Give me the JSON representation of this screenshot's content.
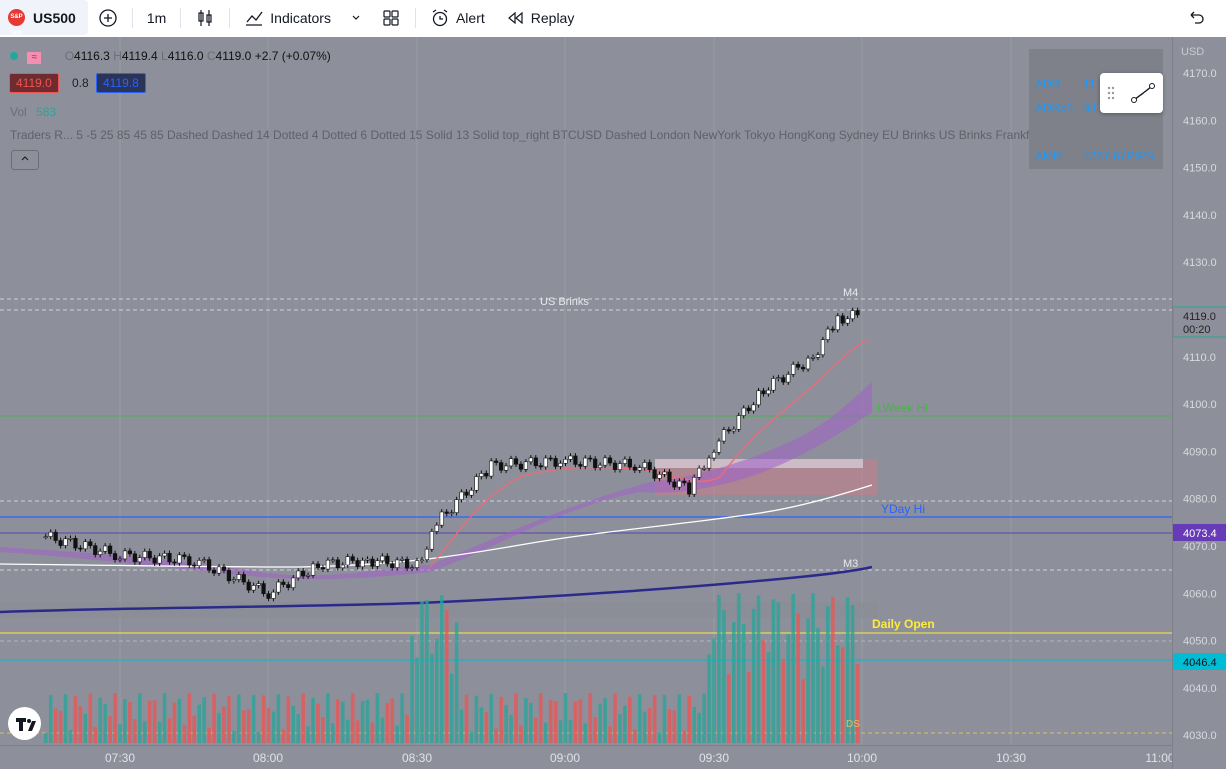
{
  "toolbar": {
    "symbol": "US500",
    "symbol_logo": "S&P 500",
    "add_symbol_icon": "plus-circle-icon",
    "interval": "1m",
    "chart_type_icon": "candles-icon",
    "indicators_label": "Indicators",
    "layouts_icon": "grid-icon",
    "alert_label": "Alert",
    "replay_label": "Replay",
    "undo_icon": "undo-icon"
  },
  "legend": {
    "ohlc": {
      "o_label": "O",
      "o": "4116.3",
      "h_label": "H",
      "h": "4119.4",
      "l_label": "L",
      "l": "4116.0",
      "c_label": "C",
      "c": "4119.0",
      "change": "+2.7 (+0.07%)"
    },
    "bid": "4119.0",
    "spread": "0.8",
    "ask": "4119.8",
    "vol_label": "Vol",
    "vol_value": "583",
    "indicator_text": "Traders R...  5 -5 25 85 45 85 Dashed Dashed 14 Dotted 4 Dotted 6 Dotted 15 Solid 13 Solid top_right BTCUSD Dashed London NewYork Tokyo HongKong Sydney EU Brinks US Brinks Frankfurt crypto b..."
  },
  "stats": {
    "adr_label": "ADR",
    "adr_value": "11",
    "adrx_label": "ADRx3",
    "adrx_value": "33",
    "amr_label": "AMR",
    "amr_value": "4267.67PIPS"
  },
  "chart_labels": {
    "us_brinks": "US Brinks",
    "m4": "M4",
    "m3": "M3",
    "week_hi": "LWeek Hi",
    "yday_hi": "YDay Hi",
    "daily_open": "Daily Open",
    "ds": "DS"
  },
  "price_axis": {
    "currency": "USD",
    "ticks": [
      "4170.0",
      "4160.0",
      "4150.0",
      "4140.0",
      "4130.0",
      "4120.0",
      "4110.0",
      "4100.0",
      "4090.0",
      "4080.0",
      "4070.0",
      "4060.0",
      "4050.0",
      "4040.0",
      "4030.0"
    ],
    "current_price": "4119.0",
    "countdown": "00:20",
    "marker_purple": "4073.4",
    "marker_cyan": "4046.4"
  },
  "time_axis": {
    "ticks": [
      "07:30",
      "08:00",
      "08:30",
      "09:00",
      "09:30",
      "10:00",
      "10:30",
      "11:00"
    ]
  },
  "colors": {
    "background": "#8d909a",
    "bull": "#26a69a",
    "bear": "#ef5350",
    "accent_purple": "#673ab7",
    "accent_cyan": "#00bcd4",
    "yday_hi": "#2962ff",
    "daily_open": "#ffeb3b"
  },
  "chart_data": {
    "type": "line",
    "series": [
      {
        "name": "US500",
        "x": [
          "07:15",
          "07:30",
          "07:45",
          "08:00",
          "08:10",
          "08:20",
          "08:30",
          "08:35",
          "08:45",
          "09:00",
          "09:15",
          "09:25",
          "09:30",
          "09:40",
          "09:50",
          "09:55",
          "10:00"
        ],
        "values": [
          4072,
          4068,
          4067,
          4060,
          4066,
          4067,
          4066,
          4076,
          4087,
          4088,
          4087,
          4082,
          4091,
          4103,
          4110,
          4118,
          4119
        ]
      }
    ],
    "ylim": [
      4030,
      4175
    ]
  }
}
